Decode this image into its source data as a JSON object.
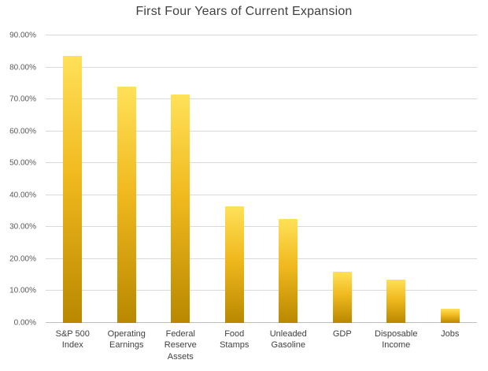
{
  "chart_data": {
    "type": "bar",
    "title": "First Four Years of Current Expansion",
    "categories": [
      "S&P 500 Index",
      "Operating Earnings",
      "Federal Reserve Assets",
      "Food Stamps",
      "Unleaded Gasoline",
      "GDP",
      "Disposable Income",
      "Jobs"
    ],
    "values": [
      83.5,
      74.0,
      71.5,
      36.5,
      32.5,
      16.0,
      13.5,
      4.5
    ],
    "unit": "%",
    "xlabel": "",
    "ylabel": "",
    "ylim": [
      0,
      90
    ],
    "ytick_values": [
      0,
      10,
      20,
      30,
      40,
      50,
      60,
      70,
      80,
      90
    ],
    "ytick_labels": [
      "0.00%",
      "10.00%",
      "20.00%",
      "30.00%",
      "40.00%",
      "50.00%",
      "60.00%",
      "70.00%",
      "80.00%",
      "90.00%"
    ],
    "grid": "horizontal",
    "legend": "none",
    "bar_color_top": "#FFE158",
    "bar_color_mid": "#F0B91E",
    "bar_color_bottom": "#B98800",
    "gridline_color": "#d9d9d9",
    "axis_line_color": "#bfbfbf",
    "title_color": "#404040",
    "tick_label_color": "#595959"
  }
}
